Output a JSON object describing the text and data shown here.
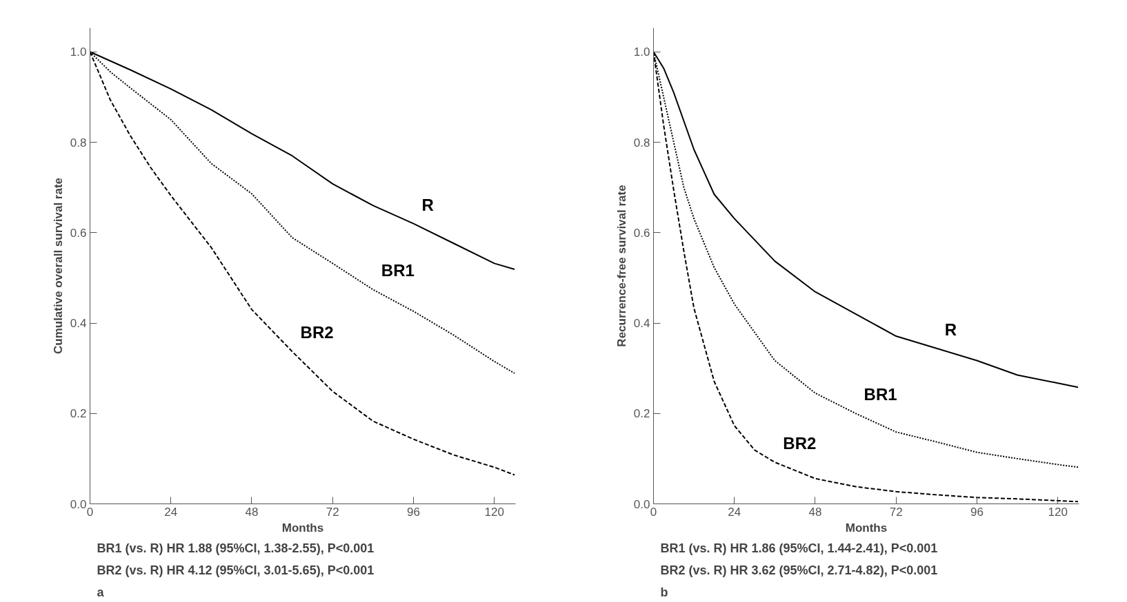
{
  "chart_data": [
    {
      "type": "line",
      "xlabel": "Months",
      "ylabel": "Cumulative overall survival rate",
      "xlim": [
        0,
        126.3
      ],
      "ylim": [
        0,
        1.053
      ],
      "xticks": [
        0,
        24,
        48,
        72,
        96,
        120
      ],
      "yticks": [
        {
          "value": 0,
          "label": "0.0"
        },
        {
          "value": 0.2,
          "label": "0.2"
        },
        {
          "value": 0.4,
          "label": "0.4"
        },
        {
          "value": 0.6,
          "label": "0.6"
        },
        {
          "value": 0.8,
          "label": "0.8"
        },
        {
          "value": 1,
          "label": "1.0"
        }
      ],
      "grid": false,
      "series": [
        {
          "name": "R",
          "color": "#000000",
          "line_style": "solid",
          "x": [
            0,
            12,
            24,
            36,
            48,
            60,
            72,
            84,
            96,
            108,
            120,
            126
          ],
          "values": [
            1.0,
            0.96,
            0.918,
            0.872,
            0.819,
            0.77,
            0.708,
            0.66,
            0.62,
            0.576,
            0.532,
            0.519
          ]
        },
        {
          "name": "BR1",
          "color": "#000000",
          "line_style": "dotted",
          "x": [
            0,
            6,
            12,
            24,
            36,
            48,
            60,
            72,
            84,
            96,
            108,
            120,
            126
          ],
          "values": [
            1.0,
            0.956,
            0.92,
            0.85,
            0.753,
            0.686,
            0.589,
            0.532,
            0.474,
            0.426,
            0.373,
            0.315,
            0.289
          ]
        },
        {
          "name": "BR2",
          "color": "#000000",
          "line_style": "dashed",
          "x": [
            0,
            6,
            12,
            18,
            24,
            36,
            48,
            60,
            72,
            84,
            96,
            108,
            120,
            126
          ],
          "values": [
            1.0,
            0.894,
            0.814,
            0.744,
            0.682,
            0.567,
            0.43,
            0.337,
            0.249,
            0.183,
            0.143,
            0.108,
            0.081,
            0.064
          ]
        }
      ],
      "annotations": [
        "BR1 (vs. R)  HR 1.88 (95%CI, 1.38-2.55), P<0.001",
        "BR2 (vs. R)  HR 4.12 (95%CI, 3.01-5.65), P<0.001",
        "a"
      ]
    },
    {
      "type": "line",
      "xlabel": "Months",
      "ylabel": "Recurrence-free survival rate",
      "xlim": [
        0,
        126.3
      ],
      "ylim": [
        0,
        1.053
      ],
      "xticks": [
        0,
        24,
        48,
        72,
        96,
        120
      ],
      "yticks": [
        {
          "value": 0,
          "label": "0.0"
        },
        {
          "value": 0.2,
          "label": "0.2"
        },
        {
          "value": 0.4,
          "label": "0.4"
        },
        {
          "value": 0.6,
          "label": "0.6"
        },
        {
          "value": 0.8,
          "label": "0.8"
        },
        {
          "value": 1,
          "label": "1.0"
        }
      ],
      "grid": false,
      "series": [
        {
          "name": "R",
          "color": "#000000",
          "line_style": "solid",
          "x": [
            0,
            3,
            6,
            12,
            18,
            24,
            36,
            48,
            60,
            72,
            84,
            96,
            108,
            120,
            126
          ],
          "values": [
            1.0,
            0.964,
            0.91,
            0.784,
            0.685,
            0.631,
            0.537,
            0.469,
            0.42,
            0.371,
            0.344,
            0.317,
            0.285,
            0.267,
            0.258
          ]
        },
        {
          "name": "BR1",
          "color": "#000000",
          "line_style": "dotted",
          "x": [
            0,
            3,
            6,
            9,
            12,
            18,
            24,
            36,
            48,
            60,
            72,
            84,
            96,
            108,
            120,
            126
          ],
          "values": [
            1.0,
            0.9,
            0.8,
            0.7,
            0.631,
            0.523,
            0.442,
            0.317,
            0.245,
            0.2,
            0.159,
            0.137,
            0.114,
            0.1,
            0.087,
            0.081
          ]
        },
        {
          "name": "BR2",
          "color": "#000000",
          "line_style": "dashed",
          "x": [
            0,
            3,
            6,
            9,
            12,
            18,
            24,
            30,
            36,
            48,
            60,
            72,
            84,
            96,
            108,
            120,
            126
          ],
          "values": [
            1.0,
            0.838,
            0.694,
            0.559,
            0.433,
            0.271,
            0.173,
            0.119,
            0.092,
            0.056,
            0.038,
            0.027,
            0.02,
            0.014,
            0.011,
            0.007,
            0.005
          ]
        }
      ],
      "annotations": [
        "BR1 (vs. R)  HR 1.86 (95%CI, 1.44-2.41), P<0.001",
        "BR2 (vs. R)  HR 3.62 (95%CI, 2.71-4.82), P<0.001",
        "b"
      ]
    }
  ]
}
